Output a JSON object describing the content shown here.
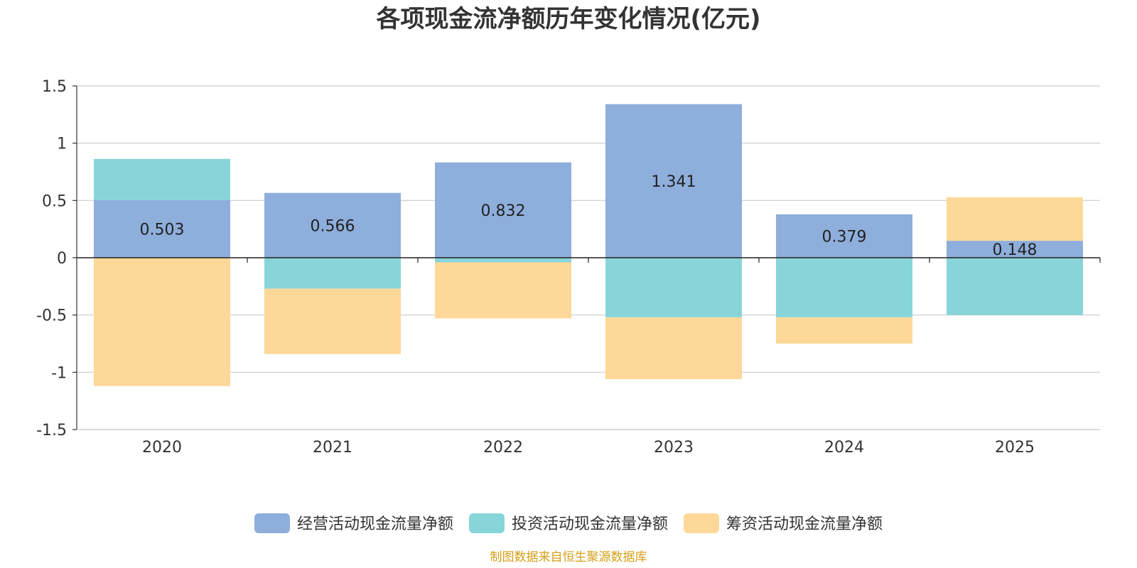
{
  "chart_data": {
    "type": "bar",
    "stacked": true,
    "title": "各项现金流净额历年变化情况(亿元)",
    "xlabel": "",
    "ylabel": "",
    "ylim": [
      -1.5,
      1.5
    ],
    "y_ticks": [
      1.5,
      1,
      0.5,
      0,
      -0.5,
      -1,
      -1.5
    ],
    "y_tick_labels": [
      "1.5",
      "1",
      "0.5",
      "0",
      "-0.5",
      "-1",
      "-1.5"
    ],
    "grid": true,
    "legend_position": "bottom-center",
    "categories": [
      "2020",
      "2021",
      "2022",
      "2023",
      "2024",
      "2025"
    ],
    "series": [
      {
        "name": "经营活动现金流量净额",
        "color": "#8eaedc",
        "values": [
          0.503,
          0.566,
          0.832,
          1.341,
          0.379,
          0.148
        ],
        "labels": [
          "0.503",
          "0.566",
          "0.832",
          "1.341",
          "0.379",
          "0.148"
        ]
      },
      {
        "name": "投资活动现金流量净额",
        "color": "#88d5d9",
        "values": [
          0.36,
          -0.27,
          -0.04,
          -0.52,
          -0.52,
          -0.5
        ]
      },
      {
        "name": "筹资活动现金流量净额",
        "color": "#fed899",
        "values": [
          -1.12,
          -0.57,
          -0.49,
          -0.54,
          -0.23,
          0.38
        ]
      }
    ],
    "source": "制图数据来自恒生聚源数据库"
  }
}
